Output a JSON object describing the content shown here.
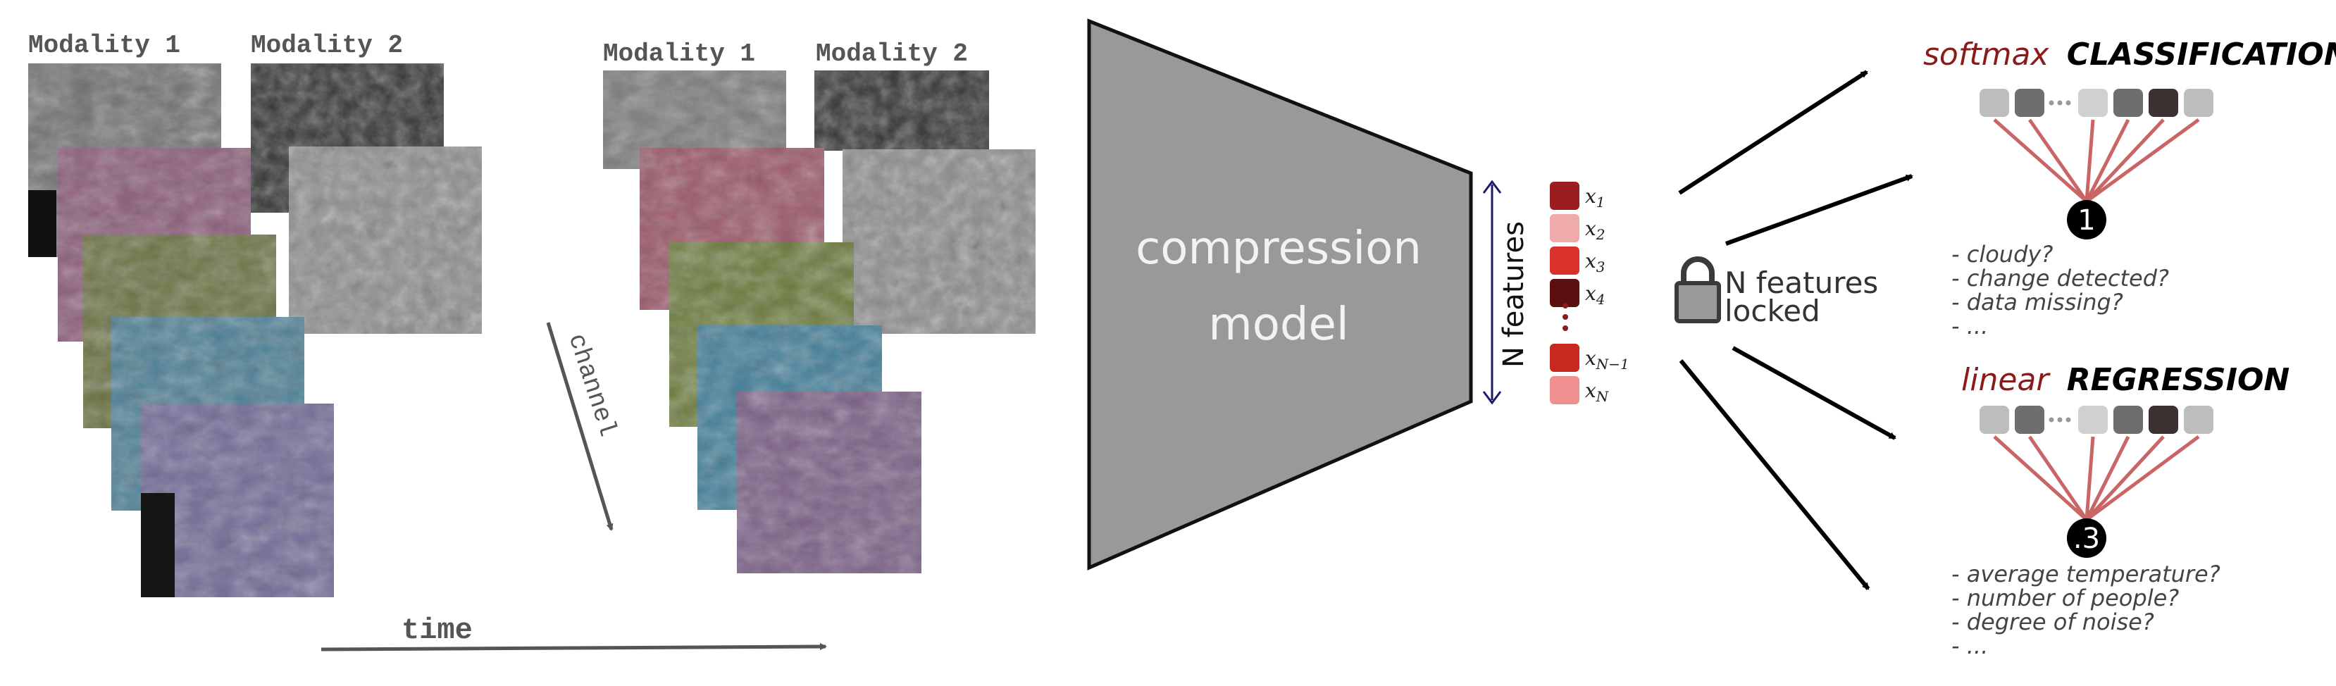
{
  "left_stack": {
    "modality1_label": "Modality 1",
    "modality2_label": "Modality 2"
  },
  "right_stack": {
    "modality1_label": "Modality 1",
    "modality2_label": "Modality 2"
  },
  "axes": {
    "channel_label": "channel",
    "time_label": "time"
  },
  "model": {
    "line1": "compression",
    "line2": "model"
  },
  "features": {
    "axis_label": "N features",
    "labels": [
      "x1",
      "x2",
      "x3",
      "x4",
      "xN-1",
      "xN"
    ],
    "colors": [
      "#9b1d1d",
      "#efaaaa",
      "#d8322a",
      "#5c0f0f",
      "#c8281e",
      "#ef8f8f"
    ]
  },
  "lock": {
    "line1": "N features",
    "line2": "locked"
  },
  "classification": {
    "prefix": "softmax",
    "title": "CLASSIFICATION",
    "output_value": "1",
    "questions": [
      "- cloudy?",
      "- change detected?",
      "- data missing?",
      "- ..."
    ]
  },
  "regression": {
    "prefix": "linear",
    "title": "REGRESSION",
    "output_value": ".3",
    "questions": [
      "- average temperature?",
      "- number of people?",
      "- degree of noise?",
      "- ..."
    ]
  },
  "colors": {
    "accent_red": "#8b1a1a",
    "connector_red": "#c96565",
    "model_gray": "#999999",
    "navy_arrow": "#1c1c6e"
  }
}
